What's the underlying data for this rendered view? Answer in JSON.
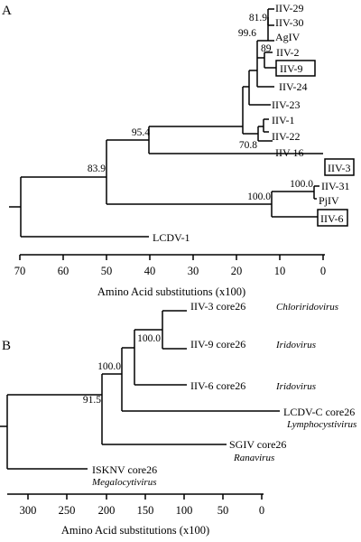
{
  "panelA": {
    "label": "A",
    "taxa": [
      "IIV-29",
      "IIV-30",
      "AgIV",
      "IIV-2",
      "IIV-9",
      "IIV-24",
      "IIV-23",
      "IIV-1",
      "IIV-22",
      "IIV-16",
      "IIV-3",
      "IIV-31",
      "PjIV",
      "IIV-6",
      "LCDV-1"
    ],
    "support": [
      "81.9",
      "99.6",
      "89",
      "95.4",
      "70.8",
      "83.9",
      "100.0",
      "100.0"
    ],
    "axis": {
      "ticks": [
        "70",
        "60",
        "50",
        "40",
        "30",
        "20",
        "10",
        "0"
      ],
      "title": "Amino Acid substitutions (x100)"
    }
  },
  "panelB": {
    "label": "B",
    "taxa": [
      {
        "name": "IIV-3 core26",
        "genus": "Chloriridovirus"
      },
      {
        "name": "IIV-9 core26",
        "genus": "Iridovirus"
      },
      {
        "name": "IIV-6 core26",
        "genus": "Iridovirus"
      },
      {
        "name": "LCDV-C core26",
        "genus": "Lymphocystivirus"
      },
      {
        "name": "SGIV core26",
        "genus": "Ranavirus"
      },
      {
        "name": "ISKNV core26",
        "genus": "Megalocytivirus"
      }
    ],
    "support": [
      "100.0",
      "100.0",
      "91.5"
    ],
    "axis": {
      "ticks": [
        "300",
        "250",
        "200",
        "150",
        "100",
        "50",
        "0"
      ],
      "title": "Amino Acid substitutions (x100)"
    }
  }
}
